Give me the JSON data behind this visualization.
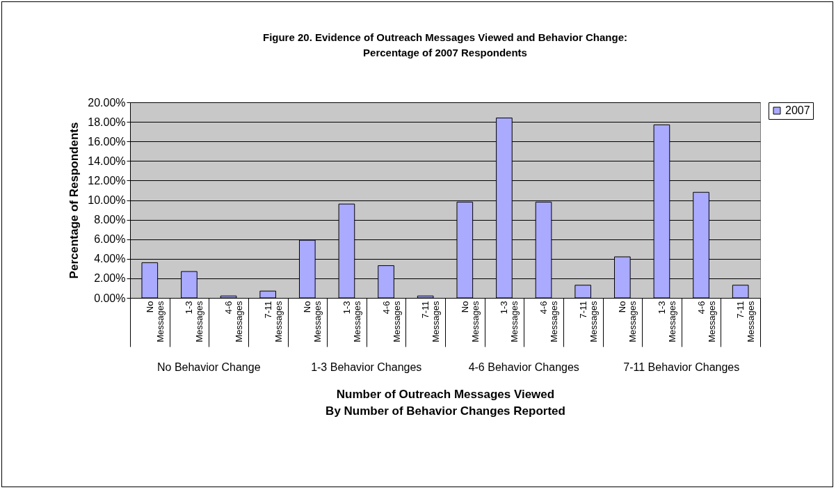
{
  "chart_data": {
    "type": "bar",
    "title": "Figure 20.  Evidence of Outreach Messages Viewed  and Behavior Change:\nPercentage of 2007 Respondents",
    "xlabel": "Number of Outreach Messages Viewed\nBy Number of Behavior Changes Reported",
    "ylabel": "Percentage of Respondents",
    "categories": [
      "No Messages",
      "1-3 Messages",
      "4-6 Messages",
      "7-11 Messages",
      "No Messages",
      "1-3 Messages",
      "4-6 Messages",
      "7-11 Messages",
      "No Messages",
      "1-3 Messages",
      "4-6 Messages",
      "7-11 Messages",
      "No Messages",
      "1-3 Messages",
      "4-6 Messages",
      "7-11 Messages"
    ],
    "series": [
      {
        "name": "2007",
        "color": "#aaaaff",
        "values": [
          3.6,
          2.7,
          0.2,
          0.7,
          5.9,
          9.6,
          3.3,
          0.2,
          9.8,
          18.4,
          9.8,
          1.3,
          4.2,
          17.7,
          10.8,
          1.3
        ]
      }
    ],
    "annotations": [
      "No Behavior Change",
      "1-3 Behavior Changes",
      "4-6 Behavior Changes",
      "7-11 Behavior Changes"
    ],
    "ylim": [
      0,
      20
    ],
    "yticks": [
      {
        "value": 0,
        "label": "0.00%"
      },
      {
        "value": 2,
        "label": "2.00%"
      },
      {
        "value": 4,
        "label": "4.00%"
      },
      {
        "value": 6,
        "label": "6.00%"
      },
      {
        "value": 8,
        "label": "8.00%"
      },
      {
        "value": 10,
        "label": "10.00%"
      },
      {
        "value": 12,
        "label": "12.00%"
      },
      {
        "value": 14,
        "label": "14.00%"
      },
      {
        "value": 16,
        "label": "16.00%"
      },
      {
        "value": 18,
        "label": "18.00%"
      },
      {
        "value": 20,
        "label": "20.00%"
      }
    ],
    "grid": "y",
    "legend": "right"
  }
}
